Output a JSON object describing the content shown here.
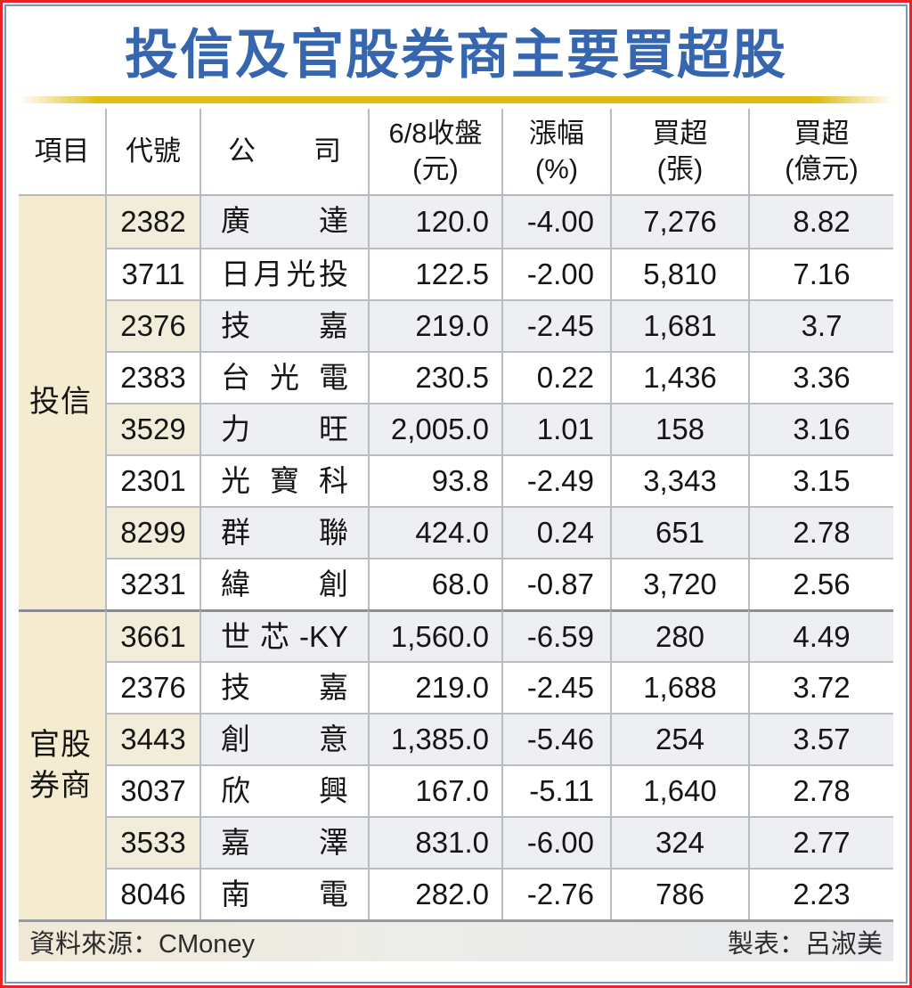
{
  "title": "投信及官股券商主要買超股",
  "colors": {
    "title_blue": "#3766b0",
    "gold_bar": "#ddbb12",
    "outer_frame_red": "#e8232a",
    "inner_frame_blue": "#7e96bb",
    "item_column_beige": "#f4ebd0",
    "shaded_row_gray": "#edeff2",
    "shaded_code_cream": "#f2ecdb",
    "separator_gray": "#8a8c8f"
  },
  "chart_data": {
    "type": "table",
    "title": "投信及官股券商主要買超股",
    "headers": [
      "項目",
      "代號",
      "公 司",
      "6/8收盤\n(元)",
      "漲幅\n(%)",
      "買超\n(張)",
      "買超\n(億元)"
    ],
    "groups": [
      {
        "label": "投信",
        "rows": [
          {
            "code": "2382",
            "company": "廣 達",
            "close": "120.0",
            "change": "-4.00",
            "lots": "7,276",
            "amount": "8.82"
          },
          {
            "code": "3711",
            "company": "日月光投控",
            "close": "122.5",
            "change": "-2.00",
            "lots": "5,810",
            "amount": "7.16"
          },
          {
            "code": "2376",
            "company": "技 嘉",
            "close": "219.0",
            "change": "-2.45",
            "lots": "1,681",
            "amount": "3.7"
          },
          {
            "code": "2383",
            "company": "台 光 電",
            "close": "230.5",
            "change": "0.22",
            "lots": "1,436",
            "amount": "3.36"
          },
          {
            "code": "3529",
            "company": "力 旺",
            "close": "2,005.0",
            "change": "1.01",
            "lots": "158",
            "amount": "3.16"
          },
          {
            "code": "2301",
            "company": "光 寶 科",
            "close": "93.8",
            "change": "-2.49",
            "lots": "3,343",
            "amount": "3.15"
          },
          {
            "code": "8299",
            "company": "群 聯",
            "close": "424.0",
            "change": "0.24",
            "lots": "651",
            "amount": "2.78"
          },
          {
            "code": "3231",
            "company": "緯 創",
            "close": "68.0",
            "change": "-0.87",
            "lots": "3,720",
            "amount": "2.56"
          }
        ]
      },
      {
        "label": "官股券商",
        "rows": [
          {
            "code": "3661",
            "company": "世芯-KY",
            "close": "1,560.0",
            "change": "-6.59",
            "lots": "280",
            "amount": "4.49"
          },
          {
            "code": "2376",
            "company": "技 嘉",
            "close": "219.0",
            "change": "-2.45",
            "lots": "1,688",
            "amount": "3.72"
          },
          {
            "code": "3443",
            "company": "創 意",
            "close": "1,385.0",
            "change": "-5.46",
            "lots": "254",
            "amount": "3.57"
          },
          {
            "code": "3037",
            "company": "欣 興",
            "close": "167.0",
            "change": "-5.11",
            "lots": "1,640",
            "amount": "2.78"
          },
          {
            "code": "3533",
            "company": "嘉 澤",
            "close": "831.0",
            "change": "-6.00",
            "lots": "324",
            "amount": "2.77"
          },
          {
            "code": "8046",
            "company": "南 電",
            "close": "282.0",
            "change": "-2.76",
            "lots": "786",
            "amount": "2.23"
          }
        ]
      }
    ],
    "source": "資料來源：CMoney",
    "credit": "製表：呂淑美"
  }
}
